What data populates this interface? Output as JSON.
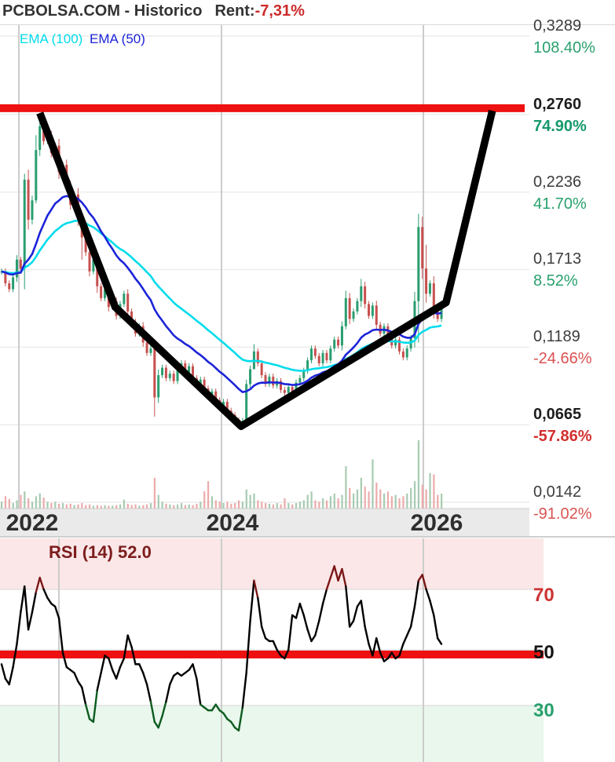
{
  "header": {
    "title": "PCBOLSA.COM - Historico",
    "rent_label": "Rent:",
    "rent_value": "-7,31%"
  },
  "legend": {
    "ema100": "EMA (100)",
    "ema50": "EMA (50)"
  },
  "price_axis": {
    "labels": [
      {
        "price": "0,3289",
        "price_val": 0.3289,
        "pct": "108.40%",
        "positive": true,
        "bold": false
      },
      {
        "price": "0,2760",
        "price_val": 0.276,
        "pct": "74.90%",
        "positive": true,
        "bold": true
      },
      {
        "price": "0,2236",
        "price_val": 0.2236,
        "pct": "41.70%",
        "positive": true,
        "bold": false
      },
      {
        "price": "0,1713",
        "price_val": 0.1713,
        "pct": "8.52%",
        "positive": true,
        "bold": false
      },
      {
        "price": "0,1189",
        "price_val": 0.1189,
        "pct": "-24.66%",
        "positive": false,
        "bold": false
      },
      {
        "price": "0,0665",
        "price_val": 0.0665,
        "pct": "-57.86%",
        "positive": false,
        "bold": true
      },
      {
        "price": "0,0142",
        "price_val": 0.0142,
        "pct": "-91.02%",
        "positive": false,
        "bold": false
      }
    ]
  },
  "x_axis": {
    "years": [
      "2022",
      "2024",
      "2026"
    ]
  },
  "rsi_panel": {
    "title": "RSI (14) 52.0",
    "labels": [
      {
        "text": "70",
        "value": 70,
        "color": "#cc3333"
      },
      {
        "text": "50",
        "value": 50,
        "color": "#141414"
      },
      {
        "text": "30",
        "value": 30,
        "color": "#2aa06d"
      }
    ]
  },
  "colors": {
    "candle_up": "#2a9d6f",
    "candle_down": "#c7504e",
    "volume_up": "#a7cbb1",
    "volume_down": "#edabab",
    "ema100": "#00dcec",
    "ema50": "#1c24d8",
    "resistance": "#ee1111",
    "trendline": "#000000",
    "rsi_line": "#000000",
    "rsi_overbought_line": "#7c1616",
    "rsi_oversold_line": "#0d5c20",
    "rsi_zone_high": "#fbe7e7",
    "rsi_zone_low": "#e9f7ec",
    "grid": "#ececec",
    "grid_vertical": "#cccccc",
    "axis_strip": "#eaeaea"
  },
  "chart_data": {
    "type": "candlestick",
    "panels": [
      "price+volume",
      "rsi"
    ],
    "title": "PCBOLSA.COM - Historico",
    "x_tick_labels": [
      "2022",
      "2024",
      "2026"
    ],
    "ylim": [
      0.0142,
      0.3289
    ],
    "base_price": 0.1578,
    "price_gridlines": [
      0.3289,
      0.276,
      0.2236,
      0.1713,
      0.1189,
      0.0665,
      0.0142
    ],
    "resistance_price": 0.276,
    "closes": [
      0.17,
      0.162,
      0.158,
      0.166,
      0.178,
      0.172,
      0.232,
      0.205,
      0.218,
      0.252,
      0.268,
      0.258,
      0.262,
      0.25,
      0.255,
      0.237,
      0.242,
      0.228,
      0.215,
      0.222,
      0.205,
      0.193,
      0.183,
      0.17,
      0.178,
      0.16,
      0.152,
      0.158,
      0.146,
      0.15,
      0.14,
      0.148,
      0.155,
      0.143,
      0.136,
      0.128,
      0.133,
      0.122,
      0.115,
      0.118,
      0.085,
      0.1,
      0.105,
      0.098,
      0.101,
      0.096,
      0.104,
      0.108,
      0.102,
      0.106,
      0.098,
      0.094,
      0.097,
      0.091,
      0.086,
      0.089,
      0.083,
      0.079,
      0.082,
      0.076,
      0.073,
      0.07,
      0.066,
      0.069,
      0.094,
      0.104,
      0.116,
      0.108,
      0.1,
      0.094,
      0.099,
      0.093,
      0.096,
      0.09,
      0.088,
      0.092,
      0.089,
      0.095,
      0.098,
      0.103,
      0.11,
      0.118,
      0.113,
      0.108,
      0.115,
      0.11,
      0.118,
      0.124,
      0.12,
      0.133,
      0.152,
      0.138,
      0.143,
      0.15,
      0.16,
      0.148,
      0.14,
      0.147,
      0.134,
      0.128,
      0.133,
      0.125,
      0.12,
      0.124,
      0.116,
      0.112,
      0.118,
      0.125,
      0.15,
      0.2,
      0.172,
      0.155,
      0.162,
      0.143,
      0.138,
      0.146
    ],
    "wick_overrides": {
      "6": [
        0.236,
        0.158
      ],
      "9": [
        0.262,
        0.216
      ],
      "10": [
        0.276,
        0.248
      ],
      "21": [
        0.205,
        0.178
      ],
      "40": [
        0.118,
        0.072
      ],
      "62": [
        0.0715,
        0.0655
      ],
      "64": [
        0.097,
        0.067
      ],
      "66": [
        0.121,
        0.104
      ],
      "90": [
        0.157,
        0.131
      ],
      "94": [
        0.165,
        0.146
      ],
      "109": [
        0.209,
        0.122
      ],
      "111": [
        0.188,
        0.149
      ]
    },
    "volumes": [
      0.1,
      0.18,
      0.14,
      0.08,
      0.12,
      0.2,
      0.25,
      0.15,
      0.1,
      0.18,
      0.22,
      0.16,
      0.1,
      0.08,
      0.1,
      0.07,
      0.08,
      0.06,
      0.07,
      0.05,
      0.06,
      0.08,
      0.05,
      0.06,
      0.04,
      0.05,
      0.04,
      0.05,
      0.04,
      0.04,
      0.05,
      0.06,
      0.13,
      0.07,
      0.05,
      0.06,
      0.04,
      0.05,
      0.06,
      0.08,
      0.45,
      0.2,
      0.1,
      0.07,
      0.06,
      0.05,
      0.06,
      0.08,
      0.05,
      0.06,
      0.05,
      0.07,
      0.1,
      0.25,
      0.4,
      0.18,
      0.12,
      0.1,
      0.08,
      0.1,
      0.07,
      0.08,
      0.12,
      0.1,
      0.28,
      0.2,
      0.22,
      0.12,
      0.1,
      0.08,
      0.07,
      0.06,
      0.08,
      0.06,
      0.15,
      0.08,
      0.06,
      0.08,
      0.1,
      0.12,
      0.2,
      0.25,
      0.12,
      0.1,
      0.15,
      0.12,
      0.18,
      0.22,
      0.15,
      0.2,
      0.62,
      0.3,
      0.22,
      0.28,
      0.45,
      0.32,
      0.25,
      0.72,
      0.38,
      0.28,
      0.22,
      0.25,
      0.18,
      0.2,
      0.15,
      0.18,
      0.22,
      0.3,
      0.4,
      1.0,
      0.35,
      0.28,
      0.52,
      0.5,
      0.2,
      0.22
    ],
    "ema_periods_label": {
      "cyan": 100,
      "blue": 50
    },
    "rsi_period": 14,
    "rsi_current": 52.0,
    "rsi_gridlines": [
      70,
      50,
      30
    ],
    "rsi_overbought": 70,
    "rsi_oversold": 30,
    "rsi_midline": 50,
    "rsi_values": [
      45,
      40,
      38,
      44,
      52,
      63,
      72,
      57,
      63,
      70,
      75,
      71,
      68,
      66,
      65,
      61,
      49,
      44,
      43,
      42,
      39,
      37,
      31,
      26,
      25,
      36,
      42,
      48,
      47,
      43,
      40,
      44,
      47,
      55,
      51,
      45,
      45,
      42,
      38,
      32,
      25,
      23,
      27,
      32,
      38,
      41,
      42,
      41,
      42,
      43,
      45,
      40,
      31,
      30,
      29,
      29,
      31,
      29,
      28,
      26,
      25,
      23,
      22,
      30,
      42,
      60,
      74,
      68,
      58,
      54,
      53,
      53,
      50,
      48,
      47,
      50,
      62,
      61,
      66,
      62,
      57,
      53,
      55,
      60,
      66,
      71,
      75,
      79,
      74,
      78,
      72,
      58,
      60,
      65,
      67,
      58,
      52,
      48,
      54,
      49,
      46,
      47,
      49,
      47,
      48,
      52,
      55,
      58,
      65,
      74,
      76,
      71,
      67,
      62,
      54,
      52
    ],
    "trendline_points": [
      [
        10,
        0.277
      ],
      [
        29.7,
        0.146
      ],
      [
        62.6,
        0.0655
      ],
      [
        116.2,
        0.149
      ],
      [
        128.3,
        0.2785
      ]
    ]
  }
}
